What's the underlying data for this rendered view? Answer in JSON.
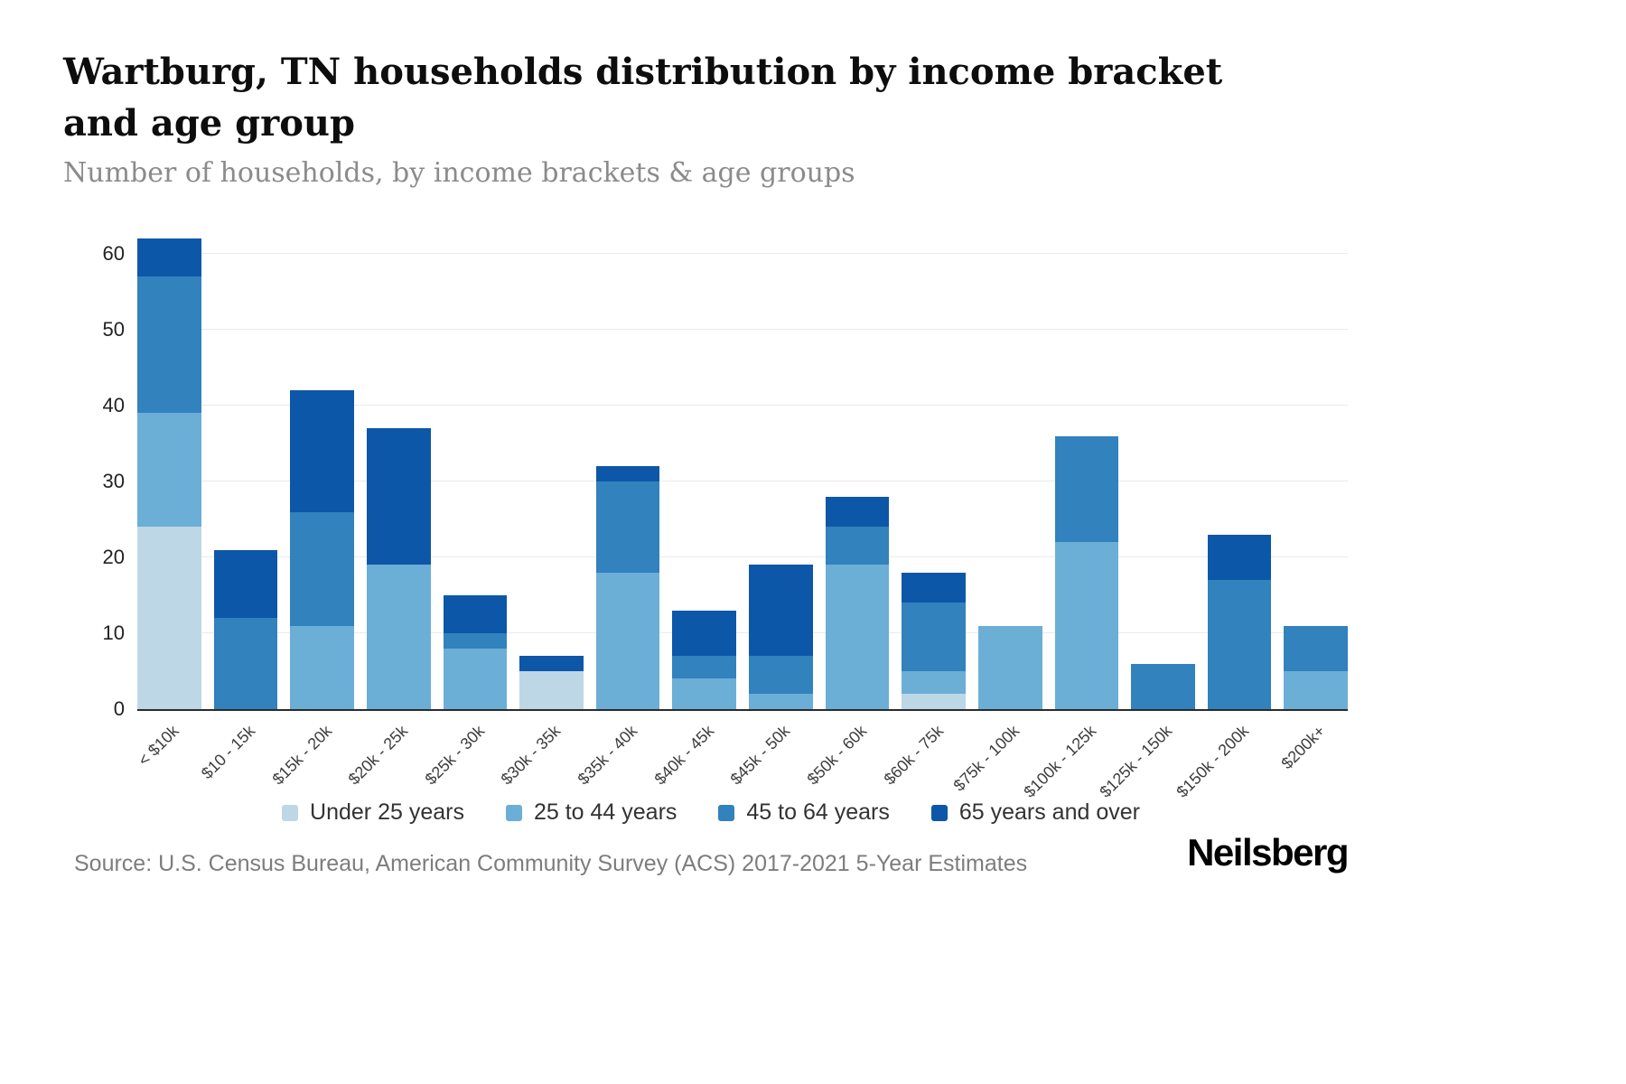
{
  "header": {
    "title": "Wartburg, TN households distribution by income bracket and age group",
    "subtitle": "Number of households, by income brackets & age groups"
  },
  "footer": {
    "source": "Source: U.S. Census Bureau, American Community Survey (ACS) 2017-2021 5-Year Estimates",
    "brand": "Neilsberg"
  },
  "chart_data": {
    "type": "bar",
    "stacked": true,
    "title": "Wartburg, TN households distribution by income bracket and age group",
    "xlabel": "",
    "ylabel": "Number of households",
    "ylim": [
      0,
      62
    ],
    "yticks": [
      0,
      10,
      20,
      30,
      40,
      50,
      60
    ],
    "grid": true,
    "legend_position": "bottom",
    "axis_color": "#2b2b2b",
    "grid_color": "#ebebeb",
    "categories": [
      "< $10k",
      "$10 - 15k",
      "$15k - 20k",
      "$20k - 25k",
      "$25k - 30k",
      "$30k - 35k",
      "$35k - 40k",
      "$40k - 45k",
      "$45k - 50k",
      "$50k - 60k",
      "$60k - 75k",
      "$75k - 100k",
      "$100k - 125k",
      "$125k - 150k",
      "$150k - 200k",
      "$200k+"
    ],
    "series": [
      {
        "name": "Under 25 years",
        "color": "#bdd7e7",
        "values": [
          24,
          0,
          0,
          0,
          0,
          5,
          0,
          0,
          0,
          0,
          2,
          0,
          0,
          0,
          0,
          0
        ]
      },
      {
        "name": "25 to 44 years",
        "color": "#6baed6",
        "values": [
          15,
          0,
          11,
          19,
          8,
          0,
          18,
          4,
          2,
          19,
          3,
          11,
          22,
          0,
          0,
          5
        ]
      },
      {
        "name": "45 to 64 years",
        "color": "#3182bd",
        "values": [
          18,
          12,
          15,
          0,
          2,
          0,
          12,
          3,
          5,
          5,
          9,
          0,
          14,
          6,
          17,
          6
        ]
      },
      {
        "name": "65 years and over",
        "color": "#0d57a8",
        "values": [
          5,
          9,
          16,
          18,
          5,
          2,
          2,
          6,
          12,
          4,
          4,
          0,
          0,
          0,
          6,
          0
        ]
      }
    ],
    "totals": [
      62,
      21,
      42,
      37,
      15,
      7,
      32,
      13,
      19,
      28,
      18,
      11,
      36,
      6,
      23,
      11
    ]
  }
}
